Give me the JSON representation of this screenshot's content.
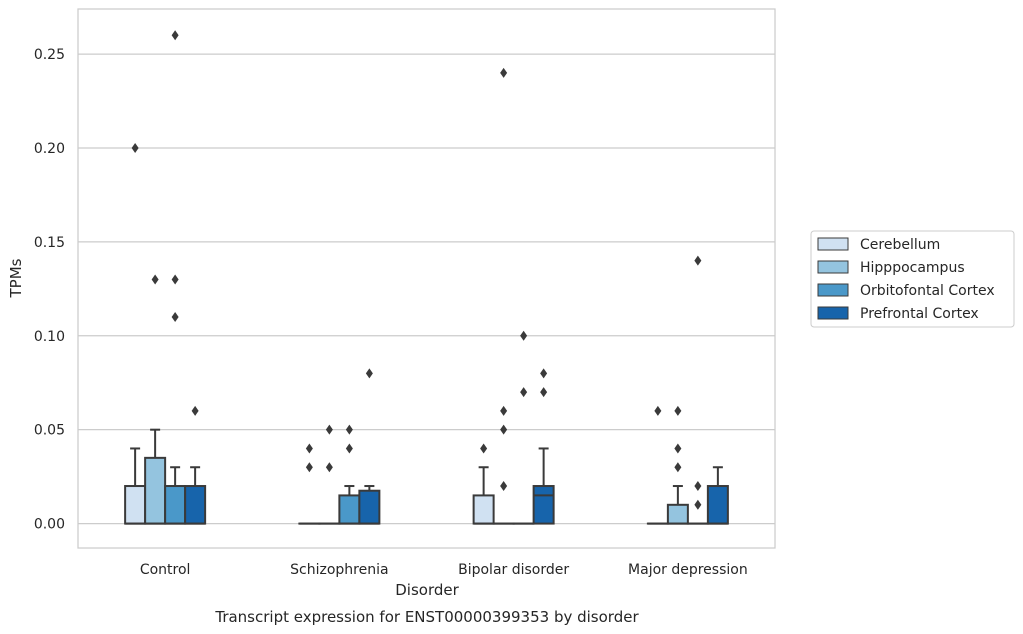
{
  "caption": "Transcript expression for ENST00000399353 by disorder",
  "chart_data": {
    "type": "box",
    "title": "",
    "xlabel": "Disorder",
    "ylabel": "TPMs",
    "ylim": [
      -0.013,
      0.274
    ],
    "yticks": [
      "0.00",
      "0.05",
      "0.10",
      "0.15",
      "0.20",
      "0.25"
    ],
    "ytick_values": [
      0.0,
      0.05,
      0.1,
      0.15,
      0.2,
      0.25
    ],
    "grid": "horizontal",
    "legend_position": "right",
    "categories": [
      "Control",
      "Schizophrenia",
      "Bipolar disorder",
      "Major depression"
    ],
    "series": [
      {
        "name": "Cerebellum",
        "color": "#d0e1f2",
        "boxes": [
          {
            "q1": 0.0,
            "median": 0.0,
            "q3": 0.02,
            "whisker_low": 0.0,
            "whisker_high": 0.04,
            "outliers": [
              0.2
            ]
          },
          {
            "q1": 0.0,
            "median": 0.0,
            "q3": 0.0,
            "whisker_low": 0.0,
            "whisker_high": 0.0,
            "outliers": [
              0.03,
              0.04
            ]
          },
          {
            "q1": 0.0,
            "median": 0.0,
            "q3": 0.015,
            "whisker_low": 0.0,
            "whisker_high": 0.03,
            "outliers": [
              0.04
            ]
          },
          {
            "q1": 0.0,
            "median": 0.0,
            "q3": 0.0,
            "whisker_low": 0.0,
            "whisker_high": 0.0,
            "outliers": [
              0.06
            ]
          }
        ]
      },
      {
        "name": "Hipppocampus",
        "color": "#94c4df",
        "boxes": [
          {
            "q1": 0.0,
            "median": 0.0,
            "q3": 0.035,
            "whisker_low": 0.0,
            "whisker_high": 0.05,
            "outliers": [
              0.13
            ]
          },
          {
            "q1": 0.0,
            "median": 0.0,
            "q3": 0.0,
            "whisker_low": 0.0,
            "whisker_high": 0.0,
            "outliers": [
              0.03,
              0.05
            ]
          },
          {
            "q1": 0.0,
            "median": 0.0,
            "q3": 0.0,
            "whisker_low": 0.0,
            "whisker_high": 0.0,
            "outliers": [
              0.24,
              0.02,
              0.05,
              0.06
            ]
          },
          {
            "q1": 0.0,
            "median": 0.0,
            "q3": 0.01,
            "whisker_low": 0.0,
            "whisker_high": 0.02,
            "outliers": [
              0.03,
              0.04,
              0.06
            ]
          }
        ]
      },
      {
        "name": "Orbitofontal Cortex",
        "color": "#4a98c9",
        "boxes": [
          {
            "q1": 0.0,
            "median": 0.0,
            "q3": 0.02,
            "whisker_low": 0.0,
            "whisker_high": 0.03,
            "outliers": [
              0.26,
              0.13,
              0.11
            ]
          },
          {
            "q1": 0.0,
            "median": 0.0,
            "q3": 0.015,
            "whisker_low": 0.0,
            "whisker_high": 0.02,
            "outliers": [
              0.04,
              0.05
            ]
          },
          {
            "q1": 0.0,
            "median": 0.0,
            "q3": 0.0,
            "whisker_low": 0.0,
            "whisker_high": 0.0,
            "outliers": [
              0.07,
              0.1
            ]
          },
          {
            "q1": 0.0,
            "median": 0.0,
            "q3": 0.0,
            "whisker_low": 0.0,
            "whisker_high": 0.0,
            "outliers": [
              0.01,
              0.02,
              0.14
            ]
          }
        ]
      },
      {
        "name": "Prefrontal Cortex",
        "color": "#1764ab",
        "boxes": [
          {
            "q1": 0.0,
            "median": 0.0,
            "q3": 0.02,
            "whisker_low": 0.0,
            "whisker_high": 0.03,
            "outliers": [
              0.06
            ]
          },
          {
            "q1": 0.0,
            "median": 0.0,
            "q3": 0.0175,
            "whisker_low": 0.0,
            "whisker_high": 0.02,
            "outliers": [
              0.08
            ]
          },
          {
            "q1": 0.0,
            "median": 0.015,
            "q3": 0.02,
            "whisker_low": 0.0,
            "whisker_high": 0.04,
            "outliers": [
              0.07,
              0.08
            ]
          },
          {
            "q1": 0.0,
            "median": 0.0,
            "q3": 0.02,
            "whisker_low": 0.0,
            "whisker_high": 0.03,
            "outliers": []
          }
        ]
      }
    ]
  }
}
